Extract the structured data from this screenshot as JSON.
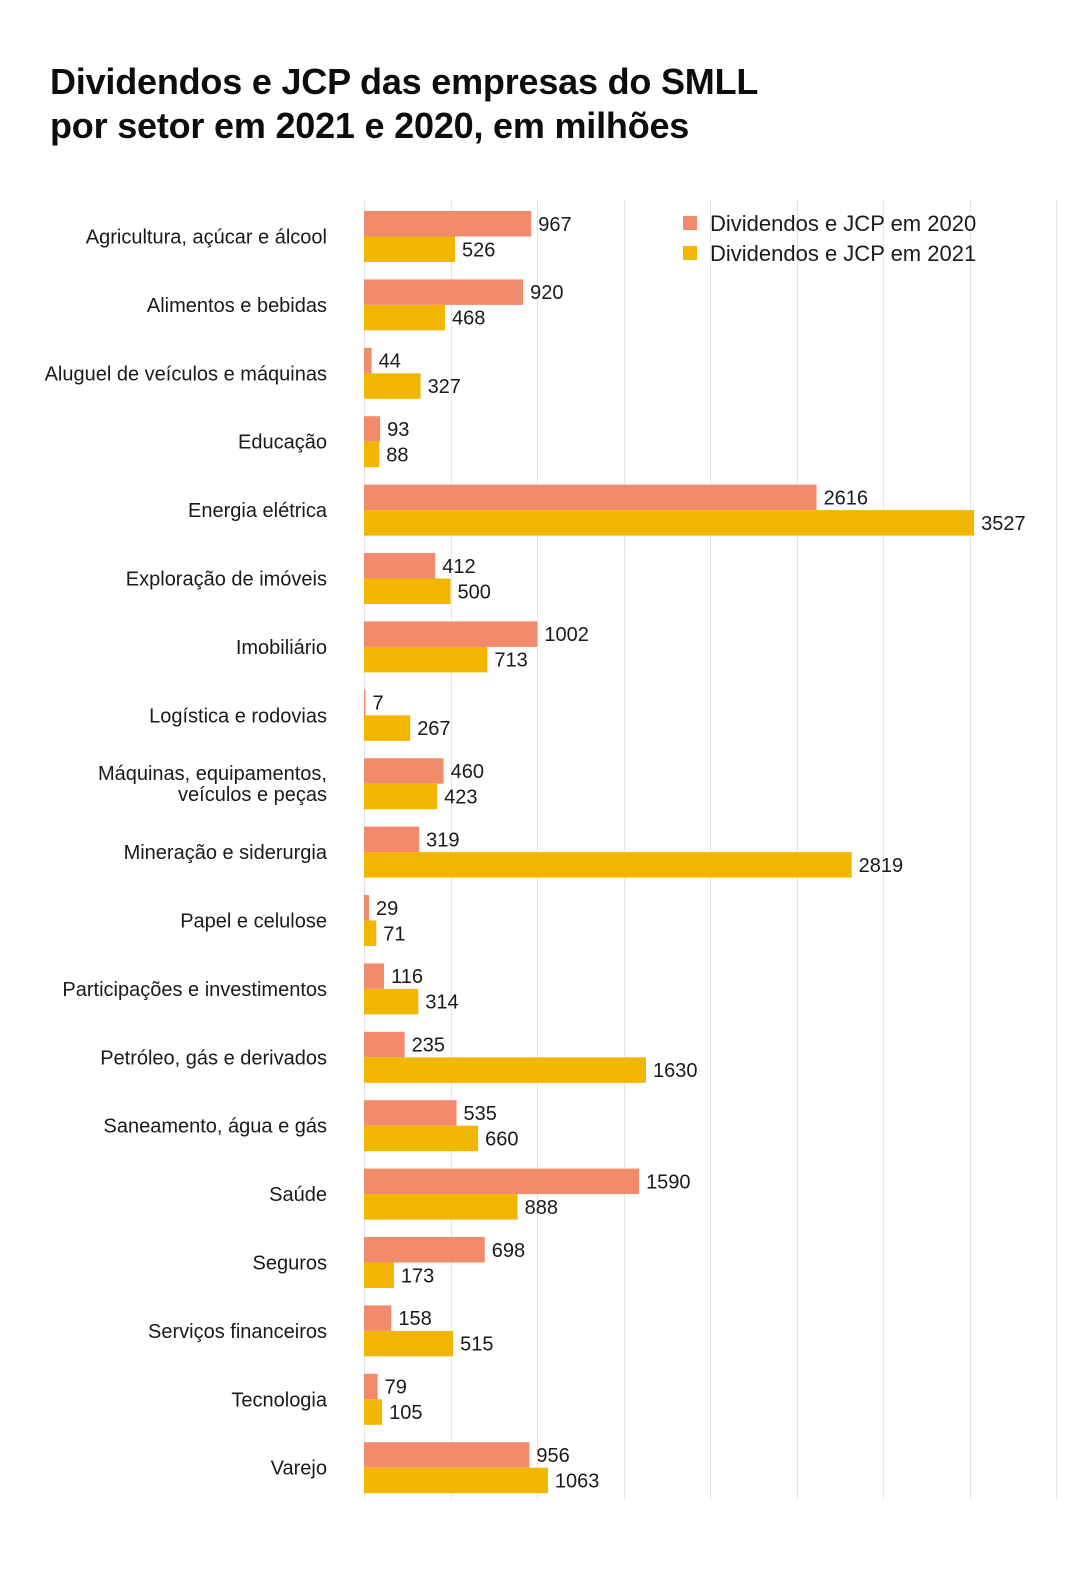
{
  "title_lines": [
    "Dividendos e JCP das empresas do SMLL",
    "por setor em 2021 e 2020, em milhões"
  ],
  "chart_data": {
    "type": "bar",
    "orientation": "horizontal",
    "title": "Dividendos e JCP das empresas do SMLL por setor em 2021 e 2020, em milhões",
    "xlabel": "",
    "ylabel": "",
    "xlim": [
      0,
      4000
    ],
    "grid": true,
    "grid_step": 500,
    "legend_position": "top-right",
    "categories": [
      "Agricultura, açúcar e álcool",
      "Alimentos e bebidas",
      "Aluguel de veículos e máquinas",
      "Educação",
      "Energia elétrica",
      "Exploração de imóveis",
      "Imobiliário",
      "Logística e rodovias",
      "Máquinas, equipamentos,\nveículos e peças",
      "Mineração e siderurgia",
      "Papel e celulose",
      "Participações e investimentos",
      "Petróleo, gás e derivados",
      "Saneamento, água e gás",
      "Saúde",
      "Seguros",
      "Serviços financeiros",
      "Tecnologia",
      "Varejo"
    ],
    "series": [
      {
        "name": "Dividendos e JCP em 2020",
        "color": "#F28B6B",
        "values": [
          967,
          920,
          44,
          93,
          2616,
          412,
          1002,
          7,
          460,
          319,
          29,
          116,
          235,
          535,
          1590,
          698,
          158,
          79,
          956
        ]
      },
      {
        "name": "Dividendos e JCP em 2021",
        "color": "#F2B600",
        "values": [
          526,
          468,
          327,
          88,
          3527,
          500,
          713,
          267,
          423,
          2819,
          71,
          314,
          1630,
          660,
          888,
          173,
          515,
          105,
          1063
        ]
      }
    ]
  },
  "colors": {
    "gridline": "#e6e6e6",
    "text": "#1a1a1a"
  }
}
